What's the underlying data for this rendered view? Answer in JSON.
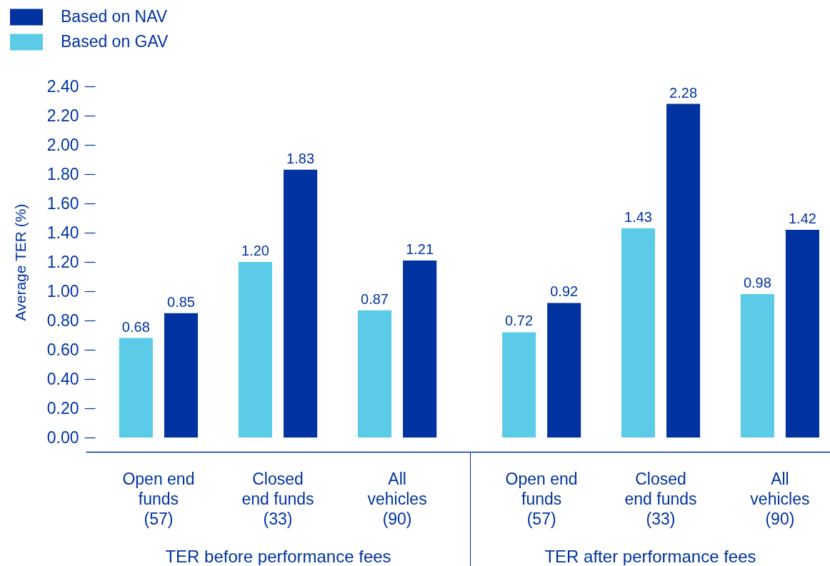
{
  "chart_data": [
    {
      "type": "bar",
      "categories": [
        "Open end funds (57)",
        "Closed end funds (33)",
        "All vehicles (90)"
      ],
      "xlabel": "TER before performance fees",
      "ylabel": "Average TER (%)",
      "series": [
        {
          "name": "Based on GAV",
          "color": "#5bcbe8",
          "values": [
            0.68,
            1.2,
            0.87
          ],
          "value_labels": [
            "0.68",
            "1.20",
            "0.87"
          ]
        },
        {
          "name": "Based on NAV",
          "color": "#0033a0",
          "values": [
            0.85,
            1.83,
            1.21
          ],
          "value_labels": [
            "0.85",
            "1.83",
            "1.21"
          ]
        }
      ],
      "ylim": [
        0,
        2.4
      ],
      "yticks": [
        {
          "value": 0,
          "label": "0.00"
        },
        {
          "value": 0.2,
          "label": "0.20"
        },
        {
          "value": 0.4,
          "label": "0.40"
        },
        {
          "value": 0.6,
          "label": "0.60"
        },
        {
          "value": 0.8,
          "label": "0.80"
        },
        {
          "value": 1,
          "label": "1.00"
        },
        {
          "value": 1.2,
          "label": "1.20"
        },
        {
          "value": 1.4,
          "label": "1.40"
        },
        {
          "value": 1.6,
          "label": "1.60"
        },
        {
          "value": 1.8,
          "label": "1.80"
        },
        {
          "value": 2,
          "label": "2.00"
        },
        {
          "value": 2.2,
          "label": "2.20"
        },
        {
          "value": 2.4,
          "label": "2.40"
        }
      ],
      "legend": "top left"
    },
    {
      "type": "bar",
      "categories": [
        "Open end funds (57)",
        "Closed end funds (33)",
        "All vehicles (90)"
      ],
      "xlabel": "TER after performance fees",
      "series": [
        {
          "color": "#5bcbe8",
          "values": [
            0.72,
            1.43,
            0.98
          ],
          "value_labels": [
            "0.72",
            "1.43",
            "0.98"
          ]
        },
        {
          "color": "#0033a0",
          "values": [
            0.92,
            2.28,
            1.42
          ],
          "value_labels": [
            "0.92",
            "2.28",
            "1.42"
          ]
        }
      ],
      "ylim": [
        0,
        2.4
      ],
      "tick_labels": "x"
    }
  ]
}
